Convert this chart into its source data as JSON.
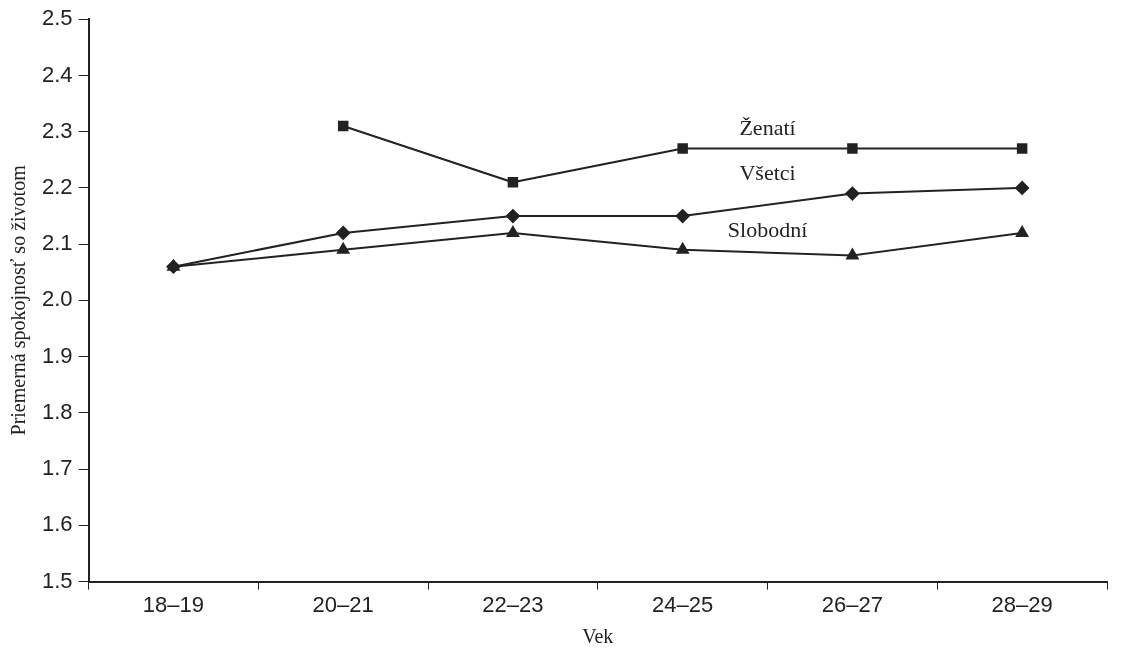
{
  "chart_data": {
    "type": "line",
    "xlabel": "Vek",
    "ylabel": "Priemerná spokojnosť so životom",
    "categories": [
      "18–19",
      "20–21",
      "22–23",
      "24–25",
      "26–27",
      "28–29"
    ],
    "series": [
      {
        "name": "Ženatí",
        "color": "#222222",
        "marker": "square",
        "values": [
          null,
          2.31,
          2.21,
          2.27,
          2.27,
          2.27
        ]
      },
      {
        "name": "Všetci",
        "color": "#222222",
        "marker": "diamond",
        "values": [
          2.06,
          2.12,
          2.15,
          2.15,
          2.19,
          2.2
        ]
      },
      {
        "name": "Slobodní",
        "color": "#222222",
        "marker": "triangle",
        "values": [
          2.06,
          2.09,
          2.12,
          2.09,
          2.08,
          2.12
        ]
      }
    ],
    "ylim": [
      1.5,
      2.5
    ],
    "yticks": [
      1.5,
      1.6,
      1.7,
      1.8,
      1.9,
      {
        "value": 2,
        "label": "2.0"
      },
      2.1,
      2.2,
      2.3,
      2.4,
      2.5
    ],
    "grid": false,
    "legend": false,
    "line_style": "solid"
  }
}
